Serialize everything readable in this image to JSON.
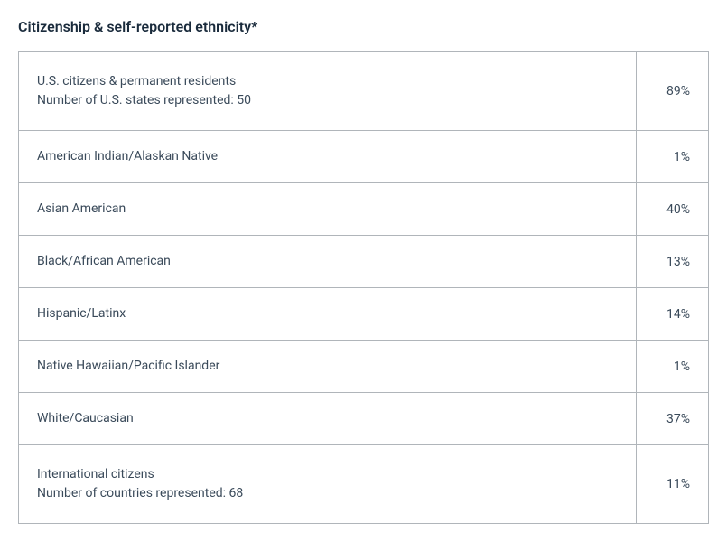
{
  "title": "Citizenship & self-reported ethnicity*",
  "table": {
    "type": "table",
    "border_color": "#b0b5ba",
    "text_color": "#3a4a5a",
    "title_color": "#1a2b3c",
    "background_color": "#ffffff",
    "title_fontsize": 16,
    "cell_fontsize": 14,
    "rows": [
      {
        "label_line1": "U.S. citizens & permanent residents",
        "label_line2": "Number of U.S. states represented: 50",
        "value": "89%",
        "multiline": true
      },
      {
        "label_line1": "American Indian/Alaskan Native",
        "value": "1%",
        "multiline": false
      },
      {
        "label_line1": "Asian American",
        "value": "40%",
        "multiline": false
      },
      {
        "label_line1": "Black/African American",
        "value": "13%",
        "multiline": false
      },
      {
        "label_line1": "Hispanic/Latinx",
        "value": "14%",
        "multiline": false
      },
      {
        "label_line1": "Native Hawaiian/Pacific Islander",
        "value": "1%",
        "multiline": false
      },
      {
        "label_line1": "White/Caucasian",
        "value": "37%",
        "multiline": false
      },
      {
        "label_line1": "International citizens",
        "label_line2": "Number of countries represented: 68",
        "value": "11%",
        "multiline": true
      }
    ]
  }
}
